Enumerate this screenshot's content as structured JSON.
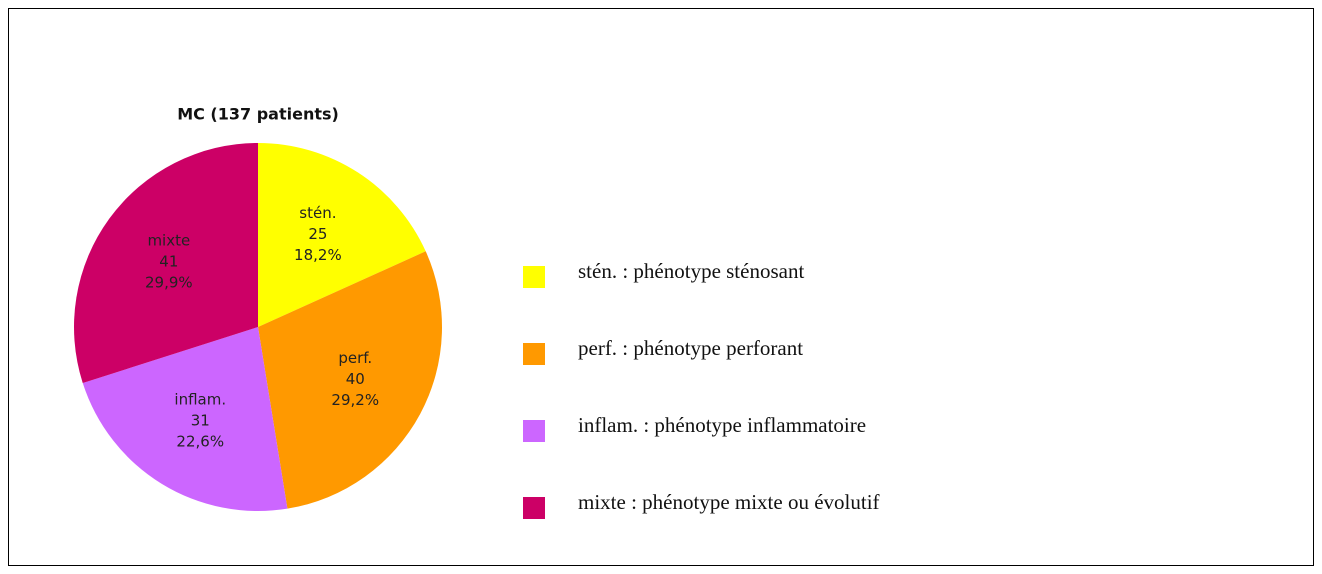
{
  "chart_data": {
    "type": "pie",
    "title": "MC (137 patients)",
    "categories": [
      "stén.",
      "perf.",
      "inflam.",
      "mixte"
    ],
    "values": [
      25,
      40,
      31,
      41
    ],
    "percentages": [
      18.2,
      29.2,
      22.6,
      29.9
    ],
    "percentage_labels": [
      "18,2%",
      "29,2%",
      "22,6%",
      "29,9%"
    ],
    "colors": [
      "#ffff00",
      "#ff9900",
      "#cc66ff",
      "#cc0066"
    ],
    "legend_labels": [
      "stén. : phénotype sténosant",
      "perf. : phénotype perforant",
      "inflam. : phénotype inflammatoire",
      "mixte : phénotype mixte ou évolutif"
    ],
    "legend": "right"
  }
}
